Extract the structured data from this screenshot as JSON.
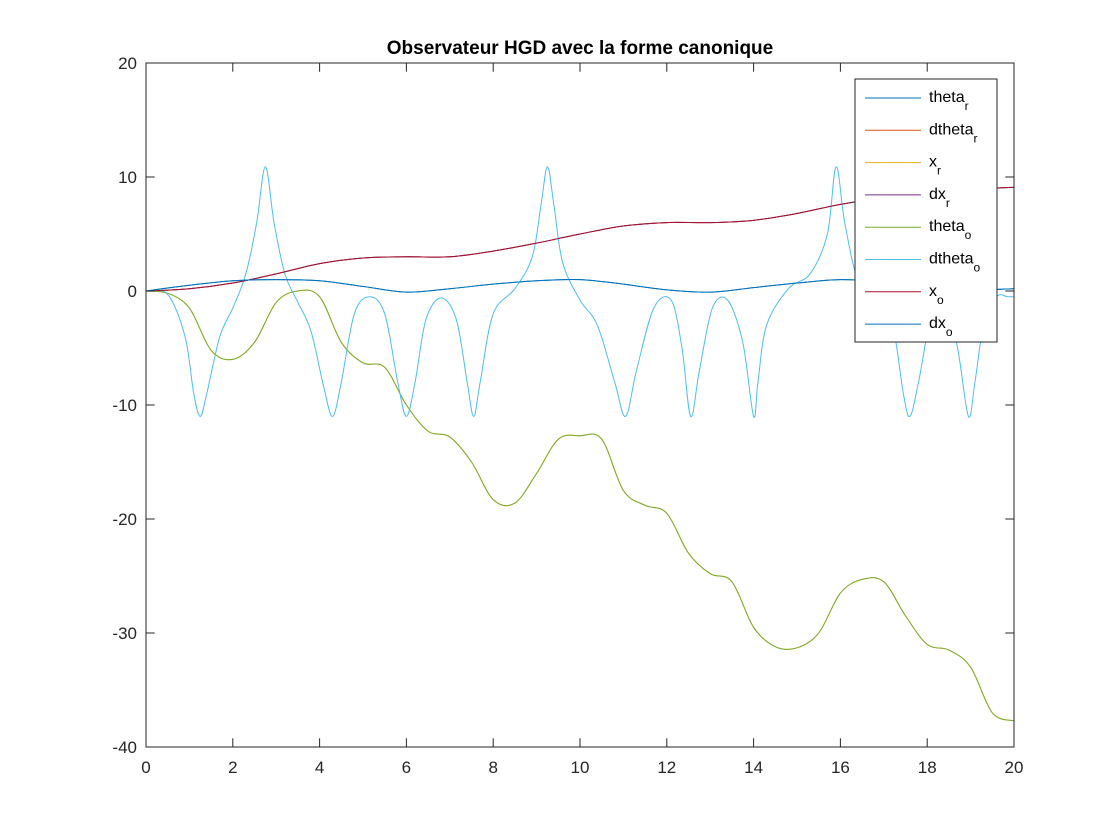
{
  "chart_data": {
    "type": "line",
    "title": "Observateur HGD avec la forme canonique",
    "xlabel": "",
    "ylabel": "",
    "xlim": [
      0,
      20
    ],
    "ylim": [
      -40,
      20
    ],
    "xticks": [
      "0",
      "2",
      "4",
      "6",
      "8",
      "10",
      "12",
      "14",
      "16",
      "18",
      "20"
    ],
    "yticks": [
      "20",
      "10",
      "0",
      "-10",
      "-20",
      "-30",
      "-40"
    ],
    "grid": false,
    "legend_position": "top-right",
    "series": [
      {
        "name": "theta",
        "sub": "r",
        "color": "#0072BD",
        "x": [
          0,
          1,
          2,
          3,
          4,
          5,
          6,
          7,
          8,
          9,
          10,
          11,
          12,
          13,
          14,
          15,
          16,
          17,
          18,
          19,
          20
        ],
        "y": [
          0,
          0.5,
          0.9,
          1.0,
          0.9,
          0.4,
          -0.1,
          0.2,
          0.6,
          0.9,
          1.0,
          0.6,
          0.1,
          -0.1,
          0.3,
          0.7,
          1.0,
          0.8,
          0.4,
          0.1,
          0.2
        ]
      },
      {
        "name": "dtheta",
        "sub": "r",
        "color": "#D95319",
        "x": [
          0,
          1,
          2,
          3,
          4,
          5,
          6,
          7,
          8,
          9,
          10,
          11,
          12,
          13,
          14,
          15,
          16,
          17,
          18,
          19,
          20
        ],
        "y": [
          0,
          0.2,
          0.7,
          1.5,
          2.4,
          2.9,
          3.0,
          3.0,
          3.5,
          4.2,
          5.0,
          5.7,
          6.0,
          6.0,
          6.2,
          6.8,
          7.6,
          8.2,
          8.6,
          8.9,
          9.1
        ]
      },
      {
        "name": "x",
        "sub": "r",
        "color": "#EDB120",
        "x": [
          0,
          0.5,
          1,
          1.5,
          2,
          2.5,
          3,
          3.5,
          4,
          4.5,
          5,
          5.5,
          6,
          6.5,
          7,
          7.5,
          8,
          8.5,
          9,
          9.5,
          10,
          10.5,
          11,
          11.5,
          12,
          12.5,
          13,
          13.5,
          14,
          14.5,
          15,
          15.5,
          16,
          16.5,
          17,
          17.5,
          18,
          18.5,
          19,
          19.5,
          20
        ],
        "y": [
          0,
          -0.2,
          -1.5,
          -5.2,
          -6.0,
          -4.5,
          -1.0,
          0,
          -0.5,
          -4.5,
          -6.3,
          -6.7,
          -10.0,
          -12.3,
          -12.8,
          -15.0,
          -18.3,
          -18.6,
          -16.0,
          -13.0,
          -12.7,
          -13.0,
          -17.5,
          -18.8,
          -19.5,
          -23.0,
          -24.8,
          -25.5,
          -29.5,
          -31.2,
          -31.3,
          -30.0,
          -26.5,
          -25.3,
          -25.5,
          -28.5,
          -31.0,
          -31.5,
          -33.0,
          -37.0,
          -37.7
        ]
      },
      {
        "name": "dx",
        "sub": "r",
        "color": "#7E2F8E",
        "x": [
          0,
          1,
          2,
          3,
          4,
          5,
          6,
          7,
          8,
          9,
          10,
          11,
          12,
          13,
          14,
          15,
          16,
          17,
          18,
          19,
          20
        ],
        "y": [
          0,
          0.2,
          0.7,
          1.5,
          2.4,
          2.9,
          3.0,
          3.0,
          3.5,
          4.2,
          5.0,
          5.7,
          6.0,
          6.0,
          6.2,
          6.8,
          7.6,
          8.2,
          8.6,
          8.9,
          9.1
        ]
      },
      {
        "name": "theta",
        "sub": "o",
        "color": "#77AC30",
        "x": [
          0,
          0.5,
          1,
          1.5,
          2,
          2.5,
          3,
          3.5,
          4,
          4.5,
          5,
          5.5,
          6,
          6.5,
          7,
          7.5,
          8,
          8.5,
          9,
          9.5,
          10,
          10.5,
          11,
          11.5,
          12,
          12.5,
          13,
          13.5,
          14,
          14.5,
          15,
          15.5,
          16,
          16.5,
          17,
          17.5,
          18,
          18.5,
          19,
          19.5,
          20
        ],
        "y": [
          0,
          -0.2,
          -1.5,
          -5.2,
          -6.0,
          -4.5,
          -1.0,
          0,
          -0.5,
          -4.5,
          -6.3,
          -6.7,
          -10.0,
          -12.3,
          -12.8,
          -15.0,
          -18.3,
          -18.6,
          -16.0,
          -13.0,
          -12.7,
          -13.0,
          -17.5,
          -18.8,
          -19.5,
          -23.0,
          -24.8,
          -25.5,
          -29.5,
          -31.2,
          -31.3,
          -30.0,
          -26.5,
          -25.3,
          -25.5,
          -28.5,
          -31.0,
          -31.5,
          -33.0,
          -37.0,
          -37.7
        ]
      },
      {
        "name": "dtheta",
        "sub": "o",
        "color": "#4DBEEE",
        "x": [
          0,
          0.5,
          0.9,
          1.1,
          1.25,
          1.4,
          1.7,
          2.0,
          2.3,
          2.55,
          2.75,
          2.95,
          3.2,
          3.5,
          3.8,
          4.1,
          4.3,
          4.5,
          4.8,
          5.15,
          5.5,
          5.8,
          6.0,
          6.2,
          6.45,
          6.8,
          7.15,
          7.4,
          7.55,
          7.7,
          8.0,
          8.5,
          8.9,
          9.1,
          9.25,
          9.4,
          9.6,
          10.0,
          10.4,
          10.8,
          11.05,
          11.3,
          11.7,
          12.1,
          12.35,
          12.55,
          12.75,
          13.05,
          13.4,
          13.75,
          14.0,
          14.1,
          14.3,
          14.8,
          15.3,
          15.7,
          15.9,
          16.1,
          16.4,
          16.8,
          17.2,
          17.45,
          17.6,
          17.8,
          18.1,
          18.4,
          18.7,
          18.95,
          19.1,
          19.3,
          19.6,
          19.85,
          20
        ],
        "y": [
          0,
          -0.3,
          -4.0,
          -9.0,
          -11.0,
          -9.0,
          -4.0,
          -1.5,
          1.5,
          6.0,
          10.9,
          6.0,
          1.5,
          -1.0,
          -3.5,
          -8.5,
          -11.0,
          -8.0,
          -2.0,
          -0.5,
          -2.0,
          -8.0,
          -11.0,
          -8.0,
          -2.5,
          -0.6,
          -2.5,
          -8.0,
          -11.0,
          -8.0,
          -2.0,
          0.2,
          3.0,
          7.5,
          10.9,
          7.5,
          2.5,
          -0.8,
          -3.0,
          -8.0,
          -11.0,
          -7.0,
          -1.5,
          -0.8,
          -5.0,
          -11.0,
          -7.0,
          -1.5,
          -0.8,
          -4.5,
          -11.0,
          -8.0,
          -3.0,
          0.2,
          1.5,
          5.0,
          10.9,
          6.0,
          1.0,
          -0.5,
          -3.0,
          -9.0,
          -11.0,
          -8.0,
          -2.0,
          -0.5,
          -5.0,
          -11.0,
          -8.0,
          -3.0,
          -0.5,
          -0.5,
          -0.5
        ]
      },
      {
        "name": "x",
        "sub": "o",
        "color": "#A2142F",
        "x": [
          0,
          1,
          2,
          3,
          4,
          5,
          6,
          7,
          8,
          9,
          10,
          11,
          12,
          13,
          14,
          15,
          16,
          17,
          18,
          19,
          20
        ],
        "y": [
          0,
          0.2,
          0.7,
          1.5,
          2.4,
          2.9,
          3.0,
          3.0,
          3.5,
          4.2,
          5.0,
          5.7,
          6.0,
          6.0,
          6.2,
          6.8,
          7.6,
          8.2,
          8.6,
          8.9,
          9.1
        ]
      },
      {
        "name": "dx",
        "sub": "o",
        "color": "#0072BD",
        "x": [
          0,
          1,
          2,
          3,
          4,
          5,
          6,
          7,
          8,
          9,
          10,
          11,
          12,
          13,
          14,
          15,
          16,
          17,
          18,
          19,
          20
        ],
        "y": [
          0,
          0.5,
          0.9,
          1.0,
          0.9,
          0.4,
          -0.1,
          0.2,
          0.6,
          0.9,
          1.0,
          0.6,
          0.1,
          -0.1,
          0.3,
          0.7,
          1.0,
          0.8,
          0.4,
          0.1,
          0.2
        ]
      }
    ]
  }
}
